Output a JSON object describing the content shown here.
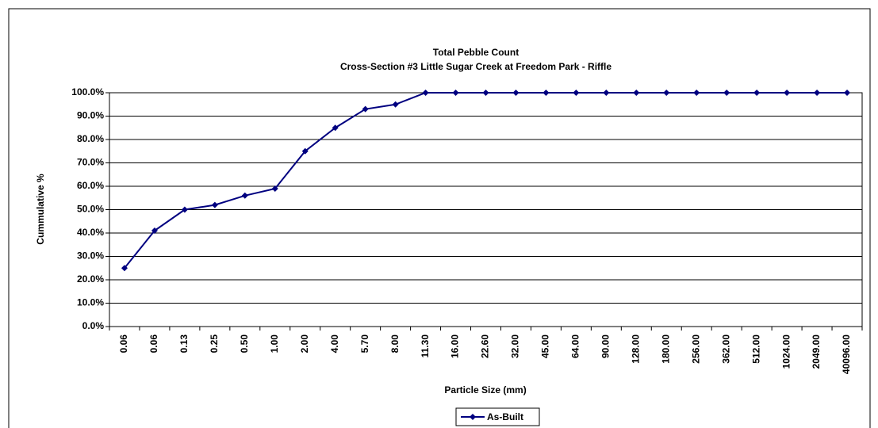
{
  "chart_data": {
    "type": "line",
    "title": "Total Pebble Count",
    "subtitle": "Cross-Section #3  Little Sugar Creek at Freedom Park - Riffle",
    "x_label": "Particle Size (mm)",
    "y_label": "Cummulative %",
    "categories": [
      "0.06",
      "0.06",
      "0.13",
      "0.25",
      "0.50",
      "1.00",
      "2.00",
      "4.00",
      "5.70",
      "8.00",
      "11.30",
      "16.00",
      "22.60",
      "32.00",
      "45.00",
      "64.00",
      "90.00",
      "128.00",
      "180.00",
      "256.00",
      "362.00",
      "512.00",
      "1024.00",
      "2049.00",
      "40096.00"
    ],
    "series": [
      {
        "name": "As-Built",
        "color": "#000080",
        "values": [
          25,
          41,
          50,
          52,
          56,
          59,
          75,
          85,
          93,
          95,
          100,
          100,
          100,
          100,
          100,
          100,
          100,
          100,
          100,
          100,
          100,
          100,
          100,
          100,
          100
        ]
      }
    ],
    "ylim": [
      0,
      100
    ],
    "yticks": [
      {
        "value": 0,
        "label": "0.0%"
      },
      {
        "value": 10,
        "label": "10.0%"
      },
      {
        "value": 20,
        "label": "20.0%"
      },
      {
        "value": 30,
        "label": "30.0%"
      },
      {
        "value": 40,
        "label": "40.0%"
      },
      {
        "value": 50,
        "label": "50.0%"
      },
      {
        "value": 60,
        "label": "60.0%"
      },
      {
        "value": 70,
        "label": "70.0%"
      },
      {
        "value": 80,
        "label": "80.0%"
      },
      {
        "value": 90,
        "label": "90.0%"
      },
      {
        "value": 100,
        "label": "100.0%"
      }
    ],
    "grid": true,
    "legend": "bottom"
  }
}
